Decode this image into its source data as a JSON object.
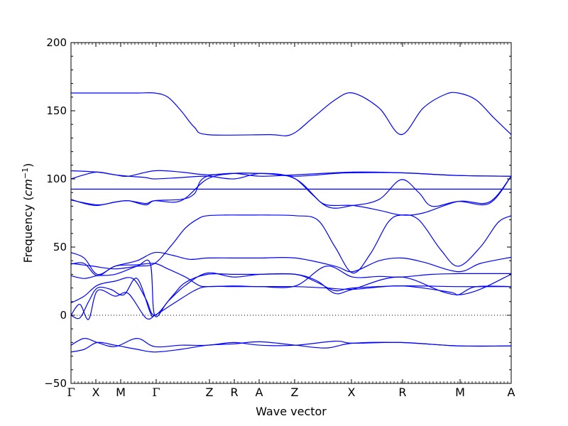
{
  "chart_data": {
    "type": "line",
    "title": "",
    "xlabel": "Wave vector",
    "ylabel_text": "Frequency (",
    "ylabel_unit": "cm",
    "ylabel_exp": "−1",
    "ylabel_close": ")",
    "ylabel": "Frequency (cm−1)",
    "ylim": [
      -50,
      200
    ],
    "yticks": [
      -50,
      0,
      50,
      100,
      150,
      200
    ],
    "ytick_labels": [
      "−50",
      "0",
      "50",
      "100",
      "150",
      "200"
    ],
    "xlim": [
      0,
      1
    ],
    "kpoints": [
      {
        "label": "Γ",
        "x": 0.0
      },
      {
        "label": "X",
        "x": 0.0565
      },
      {
        "label": "M",
        "x": 0.1129
      },
      {
        "label": "Γ",
        "x": 0.1935
      },
      {
        "label": "Z",
        "x": 0.3145
      },
      {
        "label": "R",
        "x": 0.371
      },
      {
        "label": "A",
        "x": 0.4274
      },
      {
        "label": "Z",
        "x": 0.508
      },
      {
        "label": "X",
        "x": 0.6371
      },
      {
        "label": "R",
        "x": 0.7532
      },
      {
        "label": "M",
        "x": 0.8839
      },
      {
        "label": "A",
        "x": 1.0
      }
    ],
    "zero_line": true,
    "color": "#0000ff",
    "bands": [
      {
        "x": [
          0,
          0.05,
          0.1,
          0.15,
          0.19,
          0.22,
          0.25,
          0.28,
          0.31,
          0.45,
          0.5,
          0.55,
          0.6,
          0.64,
          0.7,
          0.75,
          0.8,
          0.85,
          0.88,
          0.92,
          0.96,
          1.0
        ],
        "y": [
          163,
          163,
          163,
          163,
          163,
          160,
          150,
          138,
          132.5,
          132.5,
          132.5,
          145,
          158,
          163,
          152,
          132.5,
          152,
          162,
          163,
          158,
          145,
          132.5
        ]
      },
      {
        "x": [
          0,
          0.06,
          0.1,
          0.13,
          0.19,
          0.25,
          0.31,
          0.37,
          0.43,
          0.51,
          0.64,
          0.75,
          0.88,
          1.0
        ],
        "y": [
          106,
          105,
          103,
          102,
          106,
          105,
          103,
          104,
          102,
          103,
          105,
          104.5,
          102.5,
          102
        ]
      },
      {
        "x": [
          0,
          0.03,
          0.06,
          0.1,
          0.13,
          0.17,
          0.19,
          0.25,
          0.31,
          0.37,
          0.43,
          0.51,
          0.6,
          0.64,
          0.75,
          0.88,
          1.0
        ],
        "y": [
          100,
          103,
          105,
          103,
          102,
          101,
          100,
          101,
          102,
          100,
          104,
          102,
          104,
          104.5,
          104.5,
          102.5,
          102
        ]
      },
      {
        "x": [
          0,
          0.19,
          0.5,
          0.75,
          1.0
        ],
        "y": [
          92.5,
          92.5,
          92.5,
          92.5,
          92.5
        ]
      },
      {
        "x": [
          0,
          0.03,
          0.06,
          0.1,
          0.13,
          0.17,
          0.19,
          0.25,
          0.31,
          0.37,
          0.43,
          0.47,
          0.51,
          0.55,
          0.58,
          0.64,
          0.7,
          0.75,
          0.8,
          0.88,
          0.95,
          1.0
        ],
        "y": [
          85,
          82,
          80.5,
          83,
          84,
          82,
          84,
          84,
          100,
          104,
          104,
          103.5,
          100,
          88,
          81,
          80.5,
          77,
          73.5,
          75,
          83.5,
          83,
          102
        ]
      },
      {
        "x": [
          0,
          0.06,
          0.1,
          0.13,
          0.17,
          0.19,
          0.25,
          0.28,
          0.31,
          0.43,
          0.51,
          0.58,
          0.64,
          0.7,
          0.75,
          0.79,
          0.82,
          0.88,
          0.95,
          1.0
        ],
        "y": [
          84.5,
          81,
          83,
          84,
          81,
          84,
          85,
          89,
          102,
          104,
          100,
          80,
          80.5,
          85,
          99.5,
          90,
          80,
          83.5,
          82,
          102
        ]
      },
      {
        "x": [
          0,
          0.05,
          0.1,
          0.15,
          0.19,
          0.23,
          0.26,
          0.29,
          0.31,
          0.35,
          0.4,
          0.45,
          0.51,
          0.56,
          0.6,
          0.64,
          0.68,
          0.72,
          0.75,
          0.79,
          0.84,
          0.88,
          0.93,
          0.97,
          1.0
        ],
        "y": [
          38,
          36,
          34,
          36,
          38,
          52,
          64,
          71,
          73,
          73.5,
          73.5,
          73.5,
          73,
          70,
          50,
          31,
          45,
          68,
          73.5,
          70,
          48,
          36,
          50,
          68,
          73
        ]
      },
      {
        "x": [
          0,
          0.03,
          0.06,
          0.1,
          0.15,
          0.19,
          0.23,
          0.27,
          0.31,
          0.37,
          0.43,
          0.51,
          0.6,
          0.64,
          0.7,
          0.75,
          0.8,
          0.88,
          0.93,
          1.0
        ],
        "y": [
          46,
          42,
          30,
          36,
          40,
          46,
          44,
          41,
          42,
          42,
          42,
          42,
          36,
          32,
          40,
          42,
          39,
          32,
          38,
          42.5
        ]
      },
      {
        "x": [
          0,
          0.03,
          0.06,
          0.1,
          0.15,
          0.19,
          0.22,
          0.26,
          0.29,
          0.31,
          0.37,
          0.43,
          0.51,
          0.58,
          0.64,
          0.7,
          0.75,
          0.82,
          0.88,
          0.93,
          1.0
        ],
        "y": [
          37.5,
          38,
          29,
          36,
          37,
          38,
          34,
          28,
          22,
          21,
          21.5,
          21,
          21.5,
          36,
          28,
          28.5,
          28,
          30,
          30.5,
          30.5,
          30.5
        ]
      },
      {
        "x": [
          0,
          0.03,
          0.06,
          0.1,
          0.15,
          0.18,
          0.19,
          0.22,
          0.26,
          0.31,
          0.37,
          0.43,
          0.51,
          0.56,
          0.6,
          0.64,
          0.75,
          0.88,
          1.0
        ],
        "y": [
          29,
          27,
          29,
          30,
          36,
          38,
          0,
          10,
          22,
          31,
          28,
          30,
          30,
          24,
          18,
          20,
          21.5,
          21,
          21
        ]
      },
      {
        "x": [
          0,
          0.03,
          0.06,
          0.1,
          0.14,
          0.17,
          0.19,
          0.23,
          0.26,
          0.31,
          0.37,
          0.43,
          0.51,
          0.56,
          0.6,
          0.64,
          0.75,
          0.88,
          1.0
        ],
        "y": [
          9,
          14,
          22,
          25,
          27,
          12,
          0,
          14,
          24,
          30,
          30,
          30,
          30,
          25,
          16,
          19,
          28,
          15,
          30
        ]
      },
      {
        "x": [
          0,
          0.02,
          0.04,
          0.06,
          0.09,
          0.12,
          0.15,
          0.18,
          0.19,
          0.23,
          0.28,
          0.31,
          0.37,
          0.43,
          0.51,
          0.58,
          0.64,
          0.75,
          0.86,
          0.88,
          0.92,
          1.0
        ],
        "y": [
          0,
          -2,
          10,
          20,
          19,
          15,
          27,
          2,
          0,
          8,
          18,
          21,
          21,
          21,
          21,
          20,
          19,
          21.5,
          17,
          15,
          21,
          21
        ]
      },
      {
        "x": [
          0,
          0.02,
          0.04,
          0.06,
          0.1,
          0.13,
          0.17,
          0.19
        ],
        "y": [
          0,
          8,
          -3,
          18,
          14,
          16,
          -2,
          0
        ]
      },
      {
        "x": [
          0,
          0.03,
          0.06,
          0.1,
          0.15,
          0.19,
          0.25,
          0.31,
          0.37,
          0.43,
          0.51,
          0.6,
          0.64,
          0.75,
          0.88,
          1.0
        ],
        "y": [
          -22,
          -17,
          -20,
          -23,
          -17,
          -23,
          -22,
          -22,
          -20,
          -22,
          -22,
          -19,
          -20.5,
          -20,
          -22.5,
          -22.5
        ]
      },
      {
        "x": [
          0,
          0.03,
          0.06,
          0.1,
          0.15,
          0.19,
          0.25,
          0.31,
          0.37,
          0.43,
          0.51,
          0.58,
          0.64,
          0.75,
          0.88,
          1.0
        ],
        "y": [
          -27,
          -25,
          -20,
          -22,
          -25,
          -27,
          -25,
          -22,
          -21,
          -19.5,
          -22,
          -24,
          -20.5,
          -20,
          -22.5,
          -22.5
        ]
      }
    ]
  }
}
